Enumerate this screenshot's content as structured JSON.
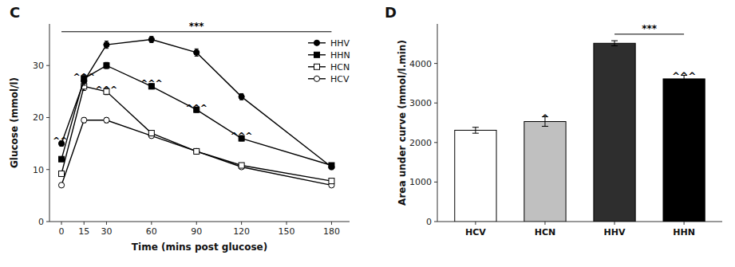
{
  "chart_data": [
    {
      "type": "line",
      "title": "C",
      "xlabel": "Time  (mins post glucose)",
      "ylabel": "Glucose (mmol/l)",
      "x": [
        0,
        15,
        30,
        60,
        90,
        120,
        180
      ],
      "series": [
        {
          "name": "HHV",
          "color": "#000000",
          "marker": "circle",
          "values": [
            15.0,
            27.0,
            34.0,
            35.0,
            32.5,
            24.0,
            10.5
          ],
          "errors": [
            0.5,
            0.8,
            0.7,
            0.6,
            0.7,
            0.6,
            0.5
          ]
        },
        {
          "name": "HHN",
          "color": "#000000",
          "marker": "square",
          "values": [
            12.0,
            27.5,
            30.0,
            26.0,
            21.5,
            16.0,
            10.8
          ],
          "errors": [
            0.4,
            0.7,
            0.6,
            0.5,
            0.5,
            0.5,
            0.4
          ]
        },
        {
          "name": "HCN",
          "color": "#000000",
          "marker": "open-square",
          "values": [
            9.2,
            26.0,
            25.0,
            17.0,
            13.5,
            10.8,
            7.8
          ],
          "errors": [
            0.4,
            0.8,
            0.6,
            0.5,
            0.4,
            0.4,
            0.3
          ]
        },
        {
          "name": "HCV",
          "color": "#000000",
          "marker": "open-circle",
          "values": [
            7.0,
            19.5,
            19.5,
            16.5,
            13.5,
            10.5,
            7.0
          ],
          "errors": [
            0.3,
            0.5,
            0.5,
            0.4,
            0.4,
            0.3,
            0.3
          ]
        }
      ],
      "xlim": [
        -8,
        192
      ],
      "xticks": [
        0,
        15,
        30,
        60,
        90,
        120,
        150,
        180
      ],
      "ylim": [
        0,
        38
      ],
      "yticks": [
        0,
        10,
        20,
        30
      ],
      "grid": false,
      "legend": "upper right",
      "annotations": [
        {
          "x1": 0,
          "x2": 180,
          "y": 36.5,
          "text": "***"
        },
        {
          "x": -1,
          "y": 16.2,
          "text": "^^"
        },
        {
          "x": 15,
          "y": 28.5,
          "text": "^^^"
        },
        {
          "x": 30,
          "y": 26.0,
          "text": "^^^"
        },
        {
          "x": 60,
          "y": 27.2,
          "text": "^^^"
        },
        {
          "x": 90,
          "y": 22.5,
          "text": "^^^"
        },
        {
          "x": 120,
          "y": 17.2,
          "text": "^^^"
        }
      ]
    },
    {
      "type": "bar",
      "title": "D",
      "ylabel": "Area under curve (mmol/l.min)",
      "categories": [
        "HCV",
        "HCN",
        "HHV",
        "HHN"
      ],
      "values": [
        2310,
        2530,
        4510,
        3610
      ],
      "errors": [
        75,
        120,
        65,
        90
      ],
      "colors": [
        "#ffffff",
        "#c0c0c0",
        "#2e2e2e",
        "#000000"
      ],
      "ylim": [
        0,
        5000
      ],
      "yticks": [
        0,
        1000,
        2000,
        3000,
        4000
      ],
      "grid": false,
      "annotations": [
        {
          "x1": "HHV",
          "x2": "HHN",
          "y": 4740,
          "text": "***"
        },
        {
          "x": "HCN",
          "y": 2710,
          "text": "^"
        },
        {
          "x": "HHN",
          "y": 3770,
          "text": "^^^"
        }
      ]
    }
  ]
}
